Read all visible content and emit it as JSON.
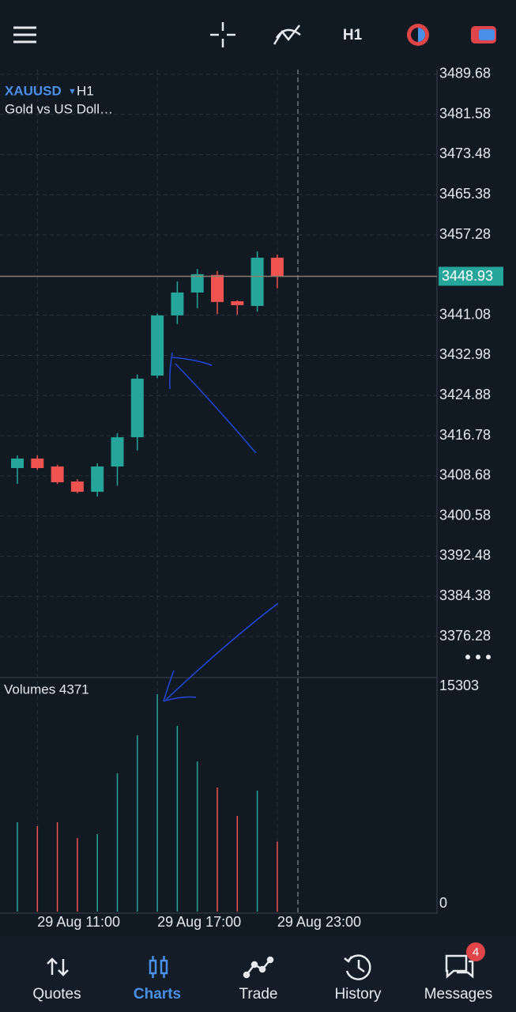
{
  "top_bar": {
    "timeframe": "H1"
  },
  "chart_data": {
    "type": "candlestick",
    "symbol": "XAUUSD",
    "timeframe": "H1",
    "subtitle": "Gold vs US Doll…",
    "categories": [
      null,
      "29 Aug 11:00",
      null,
      null,
      null,
      null,
      null,
      "29 Aug 17:00",
      null,
      null,
      null,
      null,
      null,
      "29 Aug 23:00"
    ],
    "open": [
      3410.25,
      3412.17,
      3410.57,
      3407.55,
      3405.47,
      3410.57,
      3416.47,
      3428.9,
      3441.04,
      3445.66,
      3449.2,
      3443.9,
      3442.95,
      3452.68
    ],
    "high": [
      3412.8,
      3412.8,
      3410.9,
      3408.0,
      3411.2,
      3417.3,
      3429.1,
      3441.4,
      3447.9,
      3450.4,
      3450.0,
      3444.1,
      3453.95,
      3453.3
    ],
    "low": [
      3407.07,
      3409.9,
      3407.07,
      3405.15,
      3404.5,
      3406.7,
      3413.8,
      3428.4,
      3439.3,
      3442.5,
      3441.3,
      3441.2,
      3441.8,
      3446.5
    ],
    "close": [
      3412.17,
      3410.25,
      3407.39,
      3405.47,
      3410.57,
      3416.47,
      3428.28,
      3441.04,
      3445.66,
      3449.35,
      3443.75,
      3443.1,
      3452.68,
      3449.0
    ],
    "ylim": [
      3368,
      3490.3
    ],
    "yticks": [
      3489.68,
      3481.58,
      3473.48,
      3465.38,
      3457.28,
      3441.08,
      3432.98,
      3424.88,
      3416.78,
      3408.68,
      3400.58,
      3392.48,
      3384.38,
      3376.28
    ],
    "current_price": 3448.93,
    "up_color": "#26a69a",
    "down_color": "#ef5350",
    "grid": true,
    "volume": {
      "label": "Volumes 4371",
      "values": [
        5732,
        5454,
        5732,
        4619,
        4897,
        9182,
        11853,
        14747,
        12521,
        10017,
        8181,
        6177,
        7958,
        4371
      ],
      "ylim": [
        0,
        15303
      ],
      "yticks": [
        15303,
        0
      ]
    }
  },
  "nav": {
    "items": [
      "Quotes",
      "Charts",
      "Trade",
      "History",
      "Messages"
    ],
    "active": 1,
    "badge": 4
  }
}
